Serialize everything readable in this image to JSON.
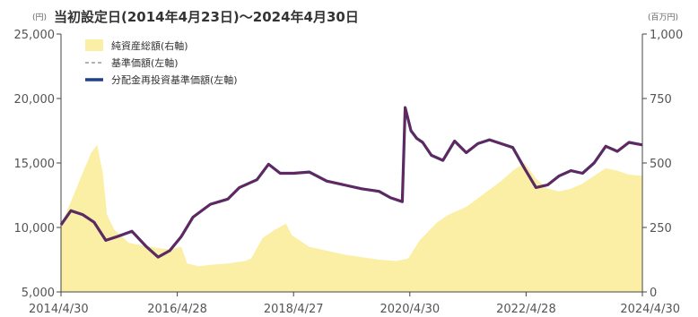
{
  "title": "当初設定日(2014年4月23日)～2024年4月30日",
  "colors": {
    "nav_line": "#6b2458",
    "reinvested_line": "#1f3f8f",
    "area_fill": "#fbefa6",
    "axis": "#444444"
  },
  "chart_data": {
    "type": "area",
    "left_unit": "(円)",
    "right_unit": "(百万円)",
    "legend": [
      "純資産総額(右軸)",
      "基準価額(左軸)",
      "分配金再投資基準価額(左軸)"
    ],
    "x_tick_labels": [
      "2014/4/30",
      "2016/4/28",
      "2018/4/27",
      "2020/4/30",
      "2022/4/28",
      "2024/4/30"
    ],
    "x_ticks": [
      2014.33,
      2016.33,
      2018.33,
      2020.33,
      2022.33,
      2024.33
    ],
    "xlim": [
      2014.33,
      2024.33
    ],
    "left_axis": {
      "ticks": [
        "5,000",
        "10,000",
        "15,000",
        "20,000",
        "25,000"
      ],
      "tick_values": [
        5000,
        10000,
        15000,
        20000,
        25000
      ],
      "ylim": [
        5000,
        25000
      ]
    },
    "right_axis": {
      "ticks": [
        "0",
        "250",
        "500",
        "750",
        "1,000"
      ],
      "tick_values": [
        0,
        250,
        500,
        750,
        1000
      ],
      "ylim": [
        0,
        1000
      ]
    },
    "series": [
      {
        "name": "純資産総額(右軸)",
        "axis": "right",
        "x": [
          2014.33,
          2014.5,
          2014.7,
          2014.85,
          2014.95,
          2015.05,
          2015.12,
          2015.25,
          2015.5,
          2015.75,
          2016.0,
          2016.2,
          2016.4,
          2016.5,
          2016.7,
          2016.9,
          2017.2,
          2017.5,
          2017.6,
          2017.8,
          2018.0,
          2018.2,
          2018.3,
          2018.6,
          2018.9,
          2019.2,
          2019.5,
          2019.8,
          2020.1,
          2020.3,
          2020.5,
          2020.8,
          2021.0,
          2021.3,
          2021.6,
          2021.9,
          2022.1,
          2022.3,
          2022.5,
          2022.7,
          2022.9,
          2023.1,
          2023.3,
          2023.5,
          2023.7,
          2023.9,
          2024.1,
          2024.33
        ],
        "values": [
          260,
          350,
          460,
          540,
          570,
          460,
          300,
          240,
          190,
          180,
          170,
          165,
          175,
          110,
          100,
          105,
          110,
          120,
          130,
          210,
          240,
          265,
          220,
          175,
          160,
          145,
          135,
          125,
          120,
          130,
          200,
          270,
          300,
          330,
          380,
          430,
          470,
          500,
          440,
          400,
          390,
          400,
          420,
          450,
          480,
          470,
          455,
          450
        ]
      },
      {
        "name": "基準価額(左軸)",
        "axis": "left",
        "x": [
          2014.33,
          2014.5,
          2014.7,
          2014.9,
          2015.1,
          2015.3,
          2015.55,
          2015.8,
          2016.0,
          2016.2,
          2016.4,
          2016.6,
          2016.9,
          2017.2,
          2017.4,
          2017.7,
          2017.9,
          2018.1,
          2018.33,
          2018.6,
          2018.9,
          2019.2,
          2019.5,
          2019.8,
          2020.0,
          2020.2,
          2020.25,
          2020.35,
          2020.45,
          2020.55,
          2020.7,
          2020.9,
          2021.1,
          2021.3,
          2021.5,
          2021.7,
          2021.9,
          2022.1,
          2022.3,
          2022.5,
          2022.7,
          2022.9,
          2023.1,
          2023.3,
          2023.5,
          2023.7,
          2023.9,
          2024.1,
          2024.33
        ],
        "values": [
          10200,
          11300,
          11000,
          10400,
          9000,
          9300,
          9700,
          8500,
          7700,
          8200,
          9300,
          10800,
          11800,
          12200,
          13100,
          13700,
          14900,
          14200,
          14200,
          14300,
          13600,
          13300,
          13000,
          12800,
          12300,
          12000,
          19300,
          17500,
          16900,
          16600,
          15600,
          15200,
          16700,
          15800,
          16500,
          16800,
          16500,
          16200,
          14600,
          13100,
          13300,
          14000,
          14400,
          14200,
          15000,
          16300,
          15900,
          16600,
          16400
        ]
      },
      {
        "name": "分配金再投資基準価額(左軸)",
        "axis": "left",
        "x": [
          2014.33,
          2014.5,
          2014.7,
          2014.9,
          2015.1,
          2015.3,
          2015.55,
          2015.8,
          2016.0,
          2016.2,
          2016.4,
          2016.6,
          2016.9,
          2017.2,
          2017.4,
          2017.7,
          2017.9,
          2018.1,
          2018.33,
          2018.6,
          2018.9,
          2019.2,
          2019.5,
          2019.8,
          2020.0,
          2020.2,
          2020.25,
          2020.35,
          2020.45,
          2020.55,
          2020.7,
          2020.9,
          2021.1,
          2021.3,
          2021.5,
          2021.7,
          2021.9,
          2022.1,
          2022.3,
          2022.5,
          2022.7,
          2022.9,
          2023.1,
          2023.3,
          2023.5,
          2023.7,
          2023.9,
          2024.1,
          2024.33
        ],
        "values": [
          10200,
          11300,
          11000,
          10400,
          9000,
          9300,
          9700,
          8500,
          7700,
          8200,
          9300,
          10800,
          11800,
          12200,
          13100,
          13700,
          14900,
          14200,
          14200,
          14300,
          13600,
          13300,
          13000,
          12800,
          12300,
          12000,
          19300,
          17500,
          16900,
          16600,
          15600,
          15200,
          16700,
          15800,
          16500,
          16800,
          16500,
          16200,
          14600,
          13100,
          13300,
          14000,
          14400,
          14200,
          15000,
          16300,
          15900,
          16600,
          16400
        ]
      }
    ]
  }
}
